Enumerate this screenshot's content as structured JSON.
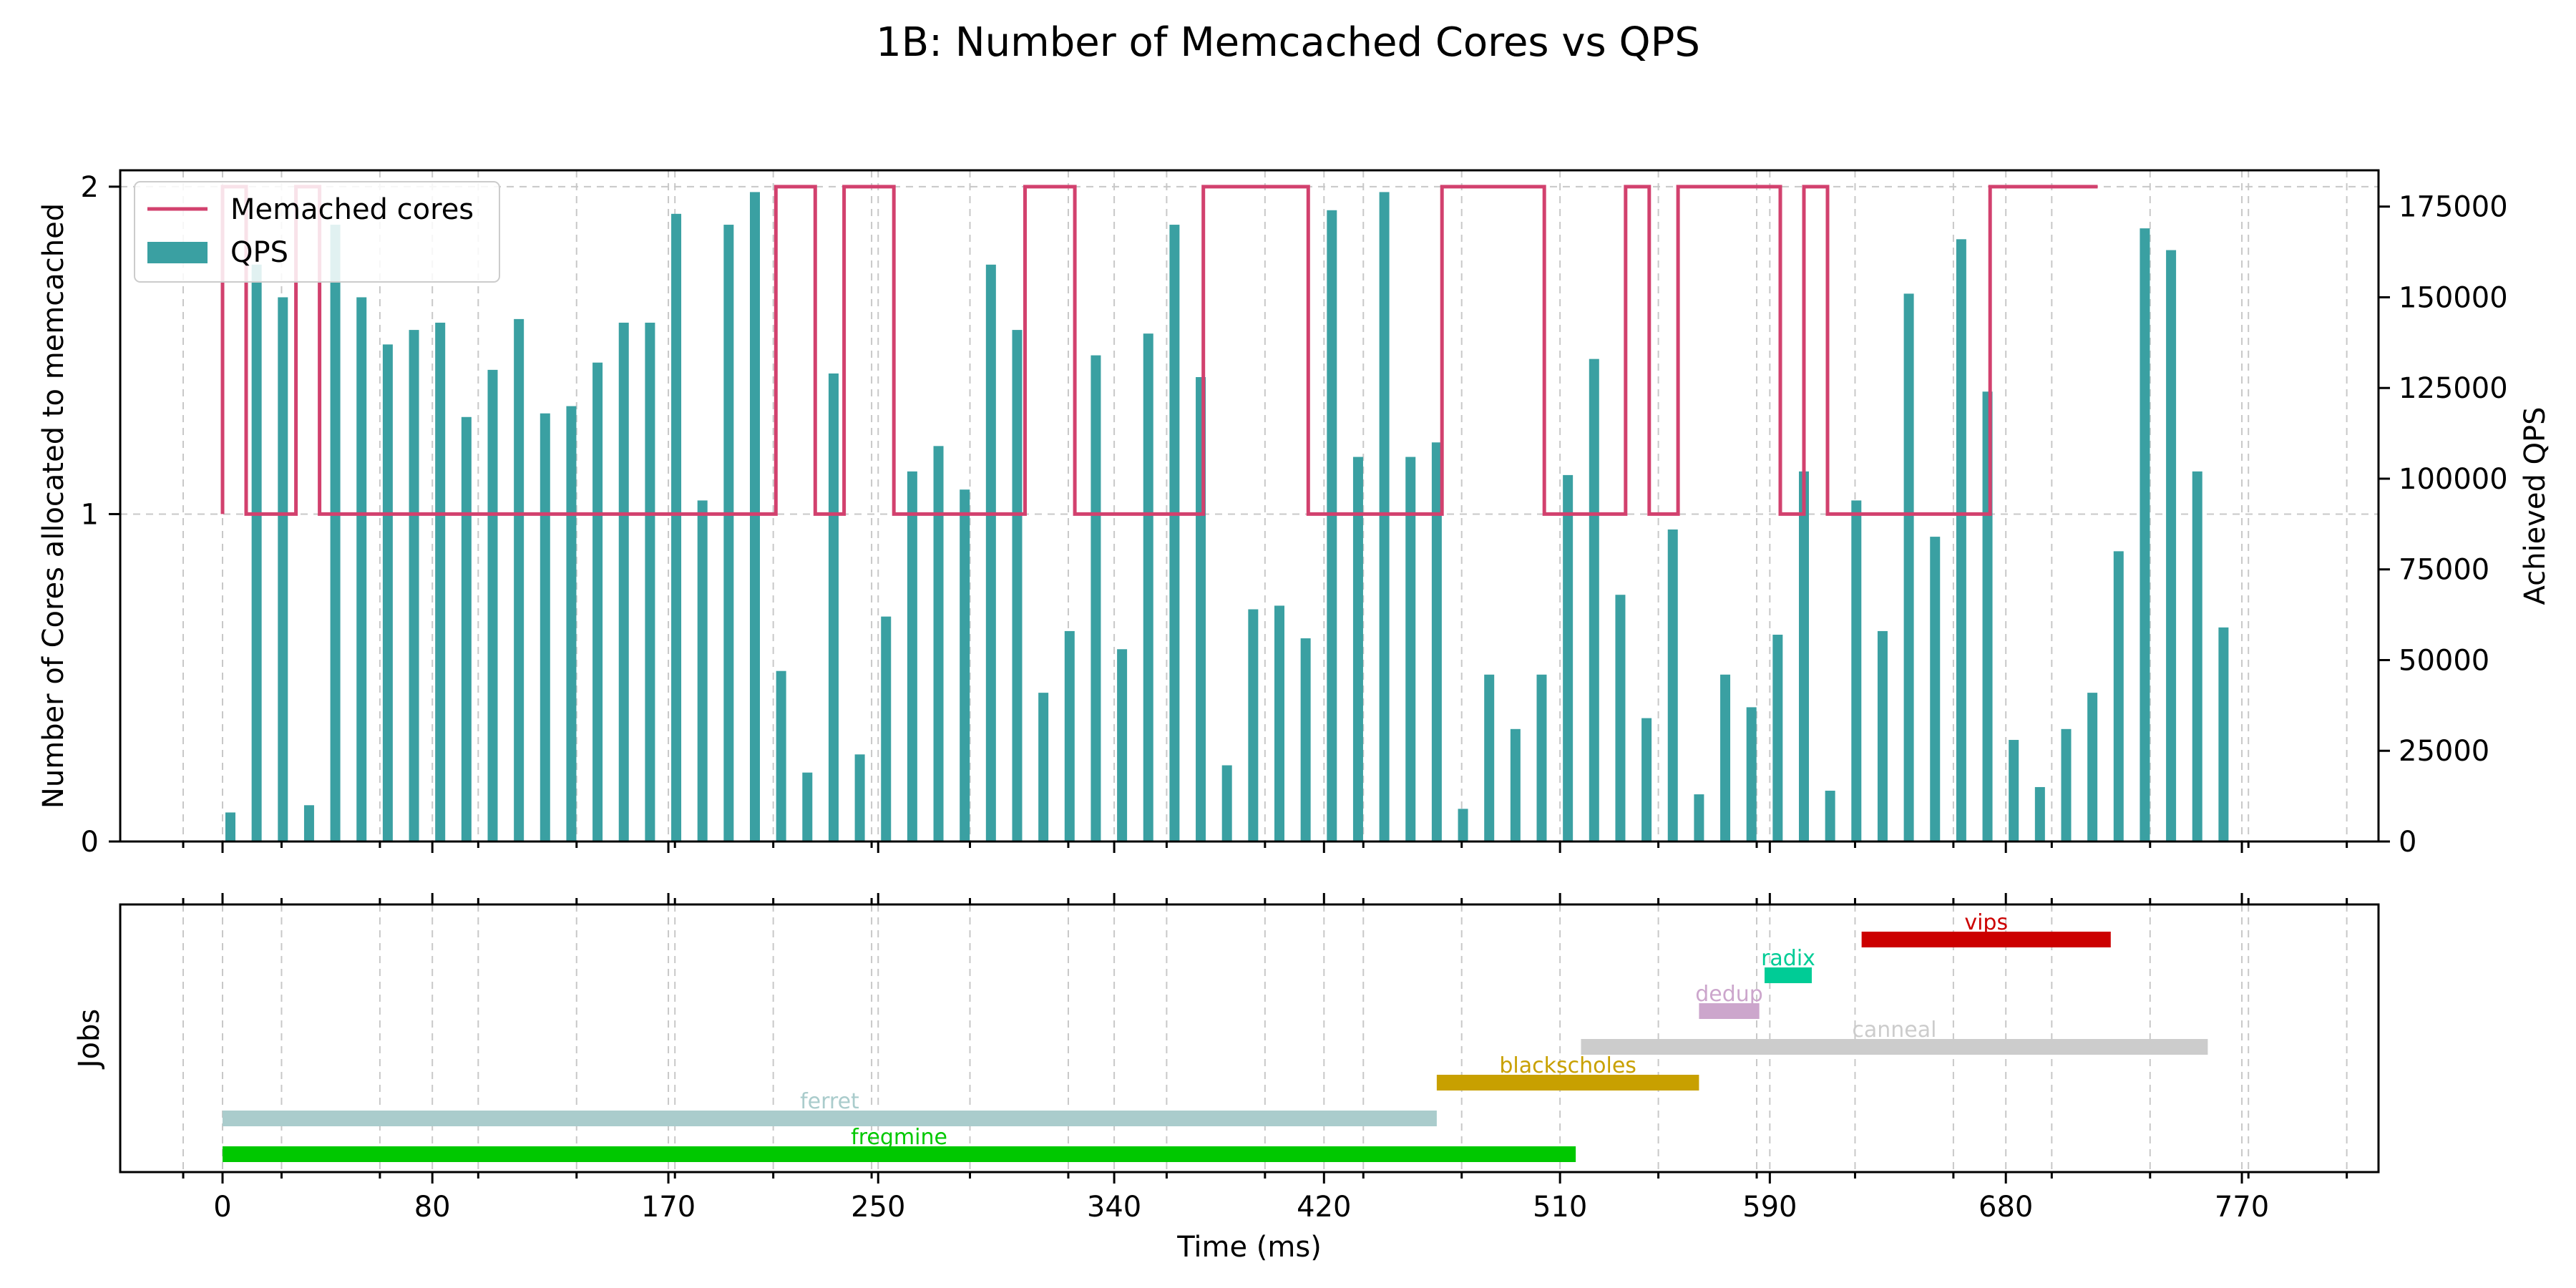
{
  "chart_data": {
    "title": "1B: Number of Memcached Cores vs QPS",
    "xlabel": "Time (ms)",
    "top": {
      "type": "line+bar",
      "ylabel_left": "Number of Cores allocated to memcached",
      "ylabel_right": "Achieved QPS",
      "xlim": [
        -15,
        820
      ],
      "ylim_left": [
        0,
        2.05
      ],
      "ylim_right": [
        0,
        185000
      ],
      "yticks_left": [
        0,
        1,
        2
      ],
      "yticks_right": [
        0,
        25000,
        50000,
        75000,
        100000,
        125000,
        150000,
        175000
      ],
      "legend": {
        "placement": "upper-left",
        "entries": [
          "Memached cores",
          "QPS"
        ]
      },
      "series": [
        {
          "name": "Memached cores",
          "type": "step",
          "color": "#d2416e",
          "x": [
            0,
            0,
            9,
            9,
            28,
            28,
            37,
            37,
            211,
            211,
            226,
            226,
            237,
            237,
            256,
            256,
            306,
            306,
            325,
            325,
            374,
            374,
            414,
            414,
            465,
            465,
            504,
            504,
            535,
            535,
            544,
            544,
            555,
            555,
            594,
            594,
            603,
            603,
            612,
            612,
            621,
            621,
            674,
            674,
            715
          ],
          "y": [
            1,
            2,
            2,
            1,
            1,
            2,
            2,
            1,
            1,
            2,
            2,
            1,
            1,
            2,
            2,
            1,
            1,
            2,
            2,
            1,
            1,
            2,
            2,
            1,
            1,
            2,
            2,
            1,
            1,
            2,
            2,
            1,
            1,
            2,
            2,
            1,
            1,
            2,
            2,
            1,
            1,
            1,
            1,
            2,
            2
          ]
        },
        {
          "name": "QPS",
          "type": "bar",
          "color": "#3aa0a2",
          "x": [
            3,
            13,
            23,
            33,
            43,
            53,
            63,
            73,
            83,
            93,
            103,
            113,
            123,
            133,
            143,
            153,
            163,
            173,
            183,
            193,
            203,
            213,
            223,
            233,
            243,
            253,
            263,
            273,
            283,
            293,
            303,
            313,
            323,
            333,
            343,
            353,
            363,
            373,
            383,
            393,
            403,
            413,
            423,
            433,
            443,
            453,
            463,
            473,
            483,
            493,
            503,
            513,
            523,
            533,
            543,
            553,
            563,
            573,
            583,
            593,
            603,
            613,
            623,
            633,
            643,
            653,
            663,
            673,
            683,
            693,
            703,
            713,
            723,
            733,
            743,
            753,
            763
          ],
          "values": [
            8000,
            159000,
            150000,
            10000,
            170000,
            150000,
            137000,
            141000,
            143000,
            117000,
            130000,
            144000,
            118000,
            120000,
            132000,
            143000,
            143000,
            173000,
            94000,
            170000,
            179000,
            47000,
            19000,
            129000,
            24000,
            62000,
            102000,
            109000,
            97000,
            159000,
            141000,
            41000,
            58000,
            134000,
            53000,
            140000,
            170000,
            128000,
            21000,
            64000,
            65000,
            56000,
            174000,
            106000,
            179000,
            106000,
            110000,
            9000,
            46000,
            31000,
            46000,
            101000,
            133000,
            68000,
            34000,
            86000,
            13000,
            46000,
            37000,
            57000,
            102000,
            14000,
            94000,
            58000,
            151000,
            84000,
            166000,
            124000,
            28000,
            15000,
            31000,
            41000,
            80000,
            169000,
            163000,
            102000,
            59000
          ]
        }
      ]
    },
    "bottom": {
      "type": "gantt",
      "ylabel": "Jobs",
      "xticks": [
        0,
        80,
        170,
        250,
        340,
        420,
        510,
        590,
        680,
        770
      ],
      "jobs": [
        {
          "name": "fregmine",
          "start": 0,
          "end": 516,
          "color": "#00c800"
        },
        {
          "name": "ferret",
          "start": 0,
          "end": 463,
          "color": "#aacccc"
        },
        {
          "name": "blackscholes",
          "start": 463,
          "end": 563,
          "color": "#c8a000"
        },
        {
          "name": "canneal",
          "start": 518,
          "end": 757,
          "color": "#cccccc"
        },
        {
          "name": "dedup",
          "start": 563,
          "end": 586,
          "color": "#cca6cc"
        },
        {
          "name": "radix",
          "start": 588,
          "end": 606,
          "color": "#00cc96"
        },
        {
          "name": "vips",
          "start": 625,
          "end": 720,
          "color": "#cc0000"
        }
      ]
    }
  }
}
